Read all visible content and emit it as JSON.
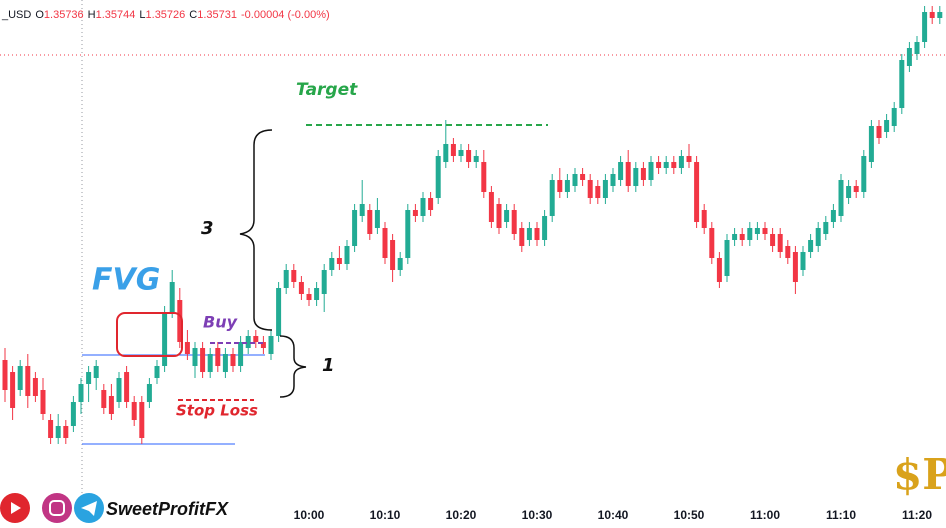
{
  "chart_data": {
    "type": "candlestick",
    "symbol": "_USD",
    "ohlc_legend": [
      {
        "label": "O",
        "value": "1.35736"
      },
      {
        "label": "H",
        "value": "1.35744"
      },
      {
        "label": "L",
        "value": "1.35726"
      },
      {
        "label": "C",
        "value": "1.35731"
      },
      {
        "label": "",
        "value": "-0.00004 (-0.00%)"
      }
    ],
    "categories": [
      null,
      null,
      null,
      null,
      null,
      null,
      null,
      null,
      null,
      null,
      null,
      null,
      null,
      null,
      null,
      null,
      null,
      null,
      null,
      null,
      null,
      null,
      null,
      null,
      null,
      null,
      null,
      null,
      null,
      null,
      null,
      null,
      null,
      null,
      null,
      null,
      null,
      null,
      null,
      null,
      "10:00",
      null,
      null,
      null,
      null,
      null,
      null,
      null,
      null,
      null,
      "10:10",
      null,
      null,
      null,
      null,
      null,
      null,
      null,
      null,
      null,
      "10:20",
      null,
      null,
      null,
      null,
      null,
      null,
      null,
      null,
      null,
      "10:30",
      null,
      null,
      null,
      null,
      null,
      null,
      null,
      null,
      null,
      "10:40",
      null,
      null,
      null,
      null,
      null,
      null,
      null,
      null,
      null,
      "10:50",
      null,
      null,
      null,
      null,
      null,
      null,
      null,
      null,
      null,
      "11:00",
      null,
      null,
      null,
      null,
      null,
      null,
      null,
      null,
      null,
      "11:10",
      null,
      null,
      null,
      null,
      null,
      null,
      null,
      null,
      null,
      "11:20",
      null,
      null,
      null
    ],
    "open": [
      1.3524,
      1.3522,
      1.3519,
      1.3523,
      1.3521,
      1.3519,
      1.3514,
      1.3511,
      1.3513,
      1.3513,
      1.3517,
      1.352,
      1.3521,
      1.3519,
      1.3518,
      1.3517,
      1.3522,
      1.3517,
      1.3517,
      1.3517,
      1.3521,
      1.3523,
      1.3532,
      1.3534,
      1.3527,
      1.3523,
      1.3526,
      1.3522,
      1.3526,
      1.3522,
      1.3525,
      1.3523,
      1.3526,
      1.3528,
      1.3527,
      1.3525,
      1.3528,
      1.3536,
      1.3539,
      1.3537,
      1.3535,
      1.3534,
      1.3535,
      1.3539,
      1.3541,
      1.354,
      1.3543,
      1.3548,
      1.3549,
      1.3546,
      1.3546,
      1.3544,
      1.3539,
      1.3541,
      1.3549,
      1.3548,
      1.3551,
      1.3551,
      1.3557,
      1.356,
      1.3558,
      1.3559,
      1.3557,
      1.3557,
      1.3552,
      1.355,
      1.3547,
      1.3549,
      1.3546,
      1.3544,
      1.3546,
      1.3544,
      1.3548,
      1.3554,
      1.3552,
      1.3553,
      1.3555,
      1.3554,
      1.3553,
      1.3551,
      1.3553,
      1.3554,
      1.3557,
      1.3553,
      1.3556,
      1.3554,
      1.3557,
      1.3556,
      1.3557,
      1.3556,
      1.3558,
      1.3557,
      1.3549,
      1.3546,
      1.3541,
      1.3538,
      1.3544,
      1.3545,
      1.3544,
      1.3545,
      1.3546,
      1.3545,
      1.3545,
      1.3543,
      1.3542,
      1.3539,
      1.3542,
      1.3543,
      1.3545,
      1.3547,
      1.3548,
      1.3551,
      1.3553,
      1.3552,
      1.3557,
      1.3563,
      1.3562,
      1.3563,
      1.3566,
      1.3573,
      1.3575,
      1.3577,
      1.3582,
      1.3581
    ],
    "high": [
      1.3526,
      1.3523,
      1.3524,
      1.3525,
      1.3522,
      1.3521,
      1.3515,
      1.3515,
      1.3514,
      1.3518,
      1.3521,
      1.3523,
      1.3524,
      1.352,
      1.352,
      1.3522,
      1.3523,
      1.3518,
      1.3518,
      1.3521,
      1.3524,
      1.3533,
      1.3539,
      1.3536,
      1.3529,
      1.3527,
      1.3527,
      1.3526,
      1.3527,
      1.3526,
      1.3526,
      1.3528,
      1.3529,
      1.3529,
      1.3528,
      1.3529,
      1.3537,
      1.354,
      1.354,
      1.3538,
      1.3536,
      1.3537,
      1.354,
      1.3542,
      1.3543,
      1.3544,
      1.355,
      1.3554,
      1.355,
      1.3551,
      1.3547,
      1.3545,
      1.3542,
      1.355,
      1.355,
      1.3552,
      1.3552,
      1.3559,
      1.3564,
      1.3561,
      1.356,
      1.356,
      1.3559,
      1.3559,
      1.3553,
      1.3551,
      1.355,
      1.355,
      1.3547,
      1.3547,
      1.3547,
      1.3549,
      1.3555,
      1.3556,
      1.3555,
      1.3556,
      1.3556,
      1.3555,
      1.3554,
      1.3555,
      1.3556,
      1.3558,
      1.3559,
      1.3557,
      1.3557,
      1.3558,
      1.3558,
      1.3558,
      1.3558,
      1.3559,
      1.356,
      1.3558,
      1.355,
      1.3547,
      1.3542,
      1.3545,
      1.3546,
      1.3546,
      1.3547,
      1.3547,
      1.3547,
      1.3546,
      1.3546,
      1.3544,
      1.3543,
      1.3543,
      1.3545,
      1.3547,
      1.3548,
      1.355,
      1.3555,
      1.3554,
      1.3554,
      1.3559,
      1.3564,
      1.3564,
      1.3565,
      1.3567,
      1.3575,
      1.3577,
      1.3578,
      1.3583,
      1.3583,
      1.3583
    ],
    "low": [
      1.3517,
      1.3514,
      1.3518,
      1.3516,
      1.3517,
      1.3514,
      1.351,
      1.351,
      1.351,
      1.3512,
      1.3515,
      1.3517,
      1.3519,
      1.3515,
      1.3514,
      1.3516,
      1.3516,
      1.3513,
      1.351,
      1.3516,
      1.352,
      1.3522,
      1.3531,
      1.3526,
      1.3524,
      1.3521,
      1.3521,
      1.3521,
      1.3522,
      1.3521,
      1.3522,
      1.3522,
      1.3525,
      1.3526,
      1.3525,
      1.3524,
      1.3527,
      1.3535,
      1.3536,
      1.3534,
      1.3533,
      1.3533,
      1.3532,
      1.3538,
      1.3539,
      1.3539,
      1.3542,
      1.3547,
      1.3544,
      1.3545,
      1.354,
      1.3537,
      1.3538,
      1.354,
      1.3547,
      1.3547,
      1.3548,
      1.355,
      1.3556,
      1.3557,
      1.3557,
      1.3556,
      1.3556,
      1.3551,
      1.3546,
      1.3545,
      1.3546,
      1.3544,
      1.3542,
      1.3543,
      1.3543,
      1.3543,
      1.3547,
      1.3551,
      1.3551,
      1.3552,
      1.3553,
      1.355,
      1.355,
      1.355,
      1.3552,
      1.3553,
      1.3552,
      1.3552,
      1.3553,
      1.3553,
      1.3555,
      1.3555,
      1.3555,
      1.3555,
      1.3556,
      1.3546,
      1.3545,
      1.354,
      1.3536,
      1.3537,
      1.3543,
      1.3543,
      1.3543,
      1.3544,
      1.3544,
      1.3542,
      1.3541,
      1.354,
      1.3535,
      1.3538,
      1.3541,
      1.3542,
      1.3544,
      1.3546,
      1.3547,
      1.355,
      1.3551,
      1.3551,
      1.3556,
      1.356,
      1.3561,
      1.3562,
      1.3565,
      1.3572,
      1.3574,
      1.3576,
      1.358,
      1.358
    ],
    "close": [
      1.3519,
      1.3516,
      1.3523,
      1.3518,
      1.3518,
      1.3515,
      1.3511,
      1.3513,
      1.3511,
      1.3517,
      1.352,
      1.3522,
      1.3523,
      1.3516,
      1.3515,
      1.3521,
      1.3517,
      1.3514,
      1.3511,
      1.352,
      1.3523,
      1.3532,
      1.3537,
      1.3527,
      1.3525,
      1.3526,
      1.3522,
      1.3525,
      1.3523,
      1.3525,
      1.3523,
      1.3527,
      1.3528,
      1.3527,
      1.3526,
      1.3528,
      1.3536,
      1.3539,
      1.3537,
      1.3535,
      1.3534,
      1.3536,
      1.3539,
      1.3541,
      1.354,
      1.3543,
      1.3549,
      1.355,
      1.3545,
      1.3549,
      1.3541,
      1.3539,
      1.3541,
      1.3549,
      1.3548,
      1.3551,
      1.3549,
      1.3558,
      1.356,
      1.3558,
      1.3559,
      1.3557,
      1.3558,
      1.3552,
      1.3547,
      1.3546,
      1.3549,
      1.3545,
      1.3543,
      1.3546,
      1.3544,
      1.3548,
      1.3554,
      1.3552,
      1.3554,
      1.3555,
      1.3554,
      1.3551,
      1.3551,
      1.3554,
      1.3555,
      1.3557,
      1.3553,
      1.3556,
      1.3554,
      1.3557,
      1.3556,
      1.3557,
      1.3556,
      1.3558,
      1.3557,
      1.3547,
      1.3546,
      1.3541,
      1.3537,
      1.3544,
      1.3545,
      1.3544,
      1.3546,
      1.3546,
      1.3545,
      1.3543,
      1.3542,
      1.3541,
      1.3537,
      1.3542,
      1.3544,
      1.3546,
      1.3547,
      1.3549,
      1.3554,
      1.3553,
      1.3552,
      1.3558,
      1.3563,
      1.3561,
      1.3564,
      1.3566,
      1.3574,
      1.3576,
      1.3577,
      1.3582,
      1.3581,
      1.3582
    ],
    "ylim": [
      1.3499,
      1.3584
    ],
    "up_color": "#22ab94",
    "down_color": "#f23645",
    "grid": false,
    "annotations": {
      "target": "Target",
      "fvg": "FVG",
      "buy": "Buy",
      "stop_loss": "Stop Loss",
      "leg_3": "3",
      "leg_1": "1"
    },
    "watermark": "SweetProfitFX"
  }
}
